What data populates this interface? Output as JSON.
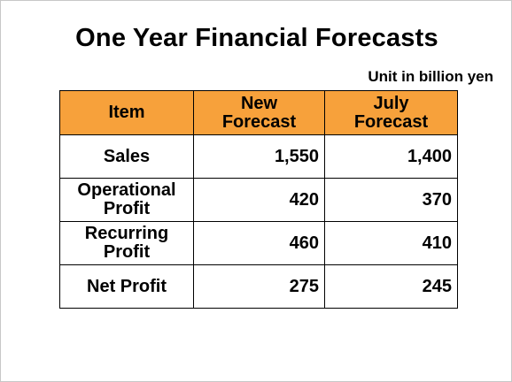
{
  "title": "One Year Financial Forecasts",
  "unit": "Unit in billion yen",
  "table": {
    "headers": [
      [
        "Item"
      ],
      [
        "New",
        "Forecast"
      ],
      [
        "July",
        "Forecast"
      ]
    ],
    "rows": [
      {
        "item": [
          "Sales"
        ],
        "new": "1,550",
        "july": "1,400"
      },
      {
        "item": [
          "Operational",
          "Profit"
        ],
        "new": "420",
        "july": "370"
      },
      {
        "item": [
          "Recurring",
          "Profit"
        ],
        "new": "460",
        "july": "410"
      },
      {
        "item": [
          "Net Profit"
        ],
        "new": "275",
        "july": "245"
      }
    ]
  },
  "colors": {
    "header_bg": "#f7a13b"
  }
}
